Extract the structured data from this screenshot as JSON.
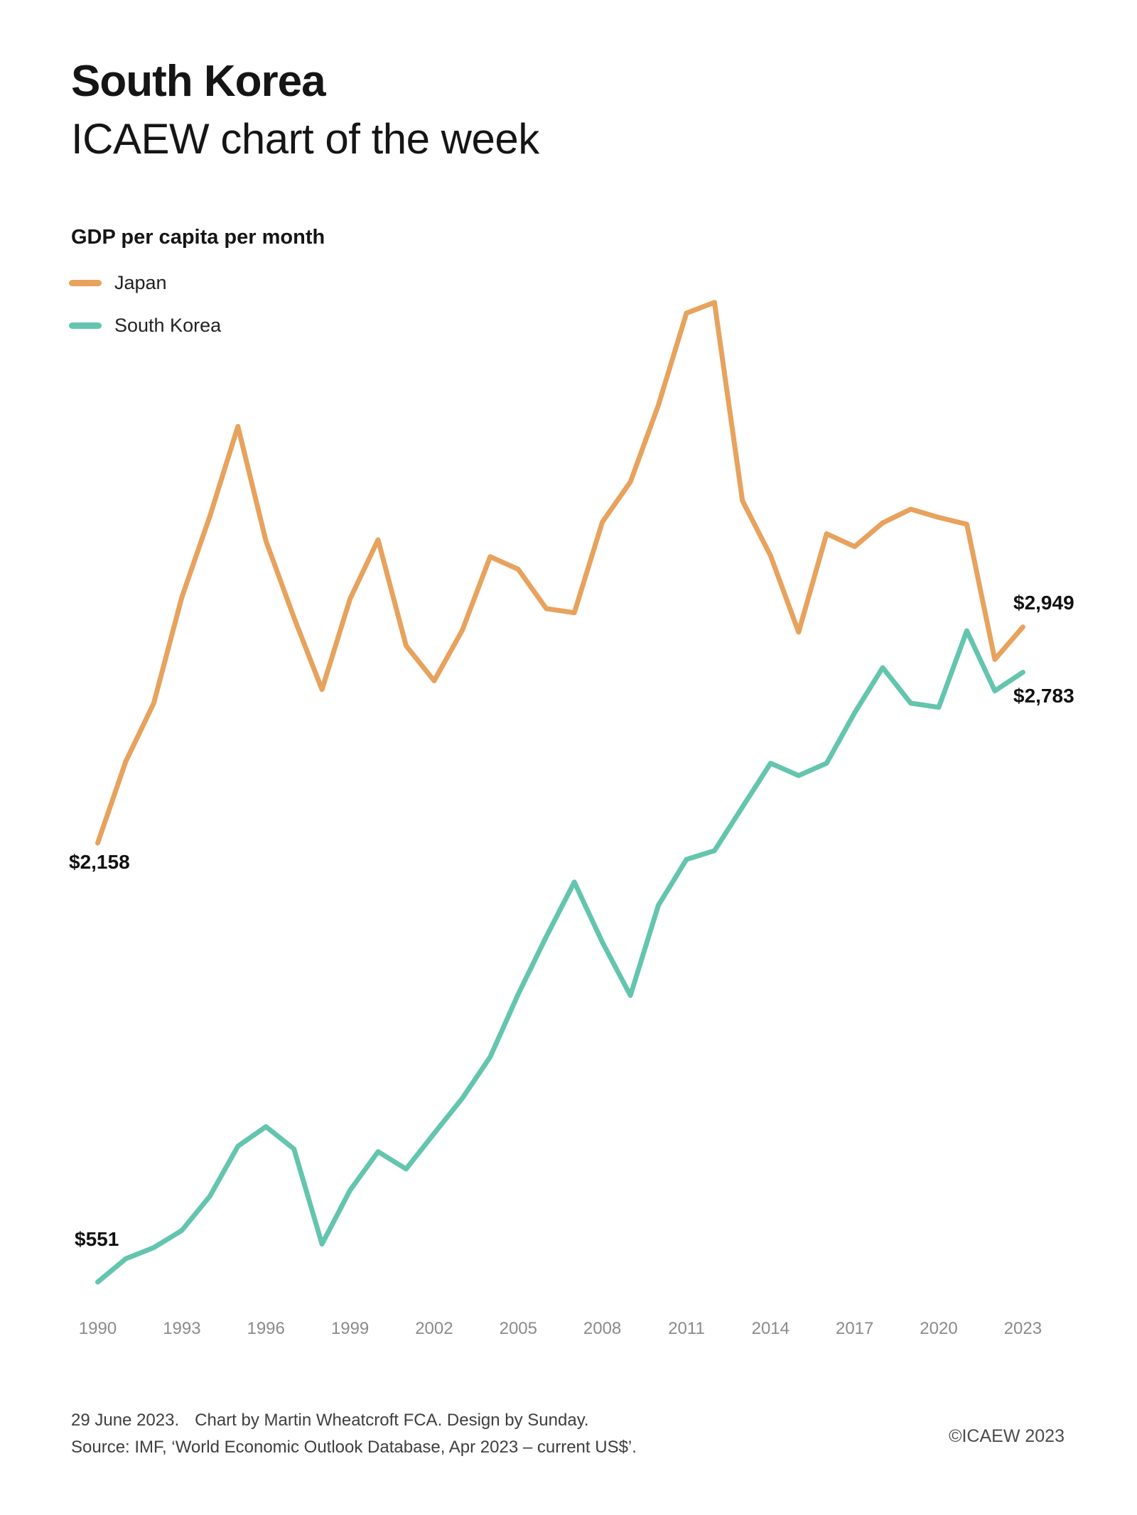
{
  "header": {
    "title": "South Korea",
    "subtitle": "ICAEW chart of the week"
  },
  "legend": {
    "title": "GDP per capita per month",
    "items": [
      {
        "label": "Japan",
        "color": "#E7A25D"
      },
      {
        "label": "South Korea",
        "color": "#64C5AF"
      }
    ]
  },
  "chart_data": {
    "type": "line",
    "title": "GDP per capita per month",
    "x": [
      1990,
      1991,
      1992,
      1993,
      1994,
      1995,
      1996,
      1997,
      1998,
      1999,
      2000,
      2001,
      2002,
      2003,
      2004,
      2005,
      2006,
      2007,
      2008,
      2009,
      2010,
      2011,
      2012,
      2013,
      2014,
      2015,
      2016,
      2017,
      2018,
      2019,
      2020,
      2021,
      2022,
      2023
    ],
    "x_ticks": [
      1990,
      1993,
      1996,
      1999,
      2002,
      2005,
      2008,
      2011,
      2014,
      2017,
      2020,
      2023
    ],
    "series": [
      {
        "name": "Japan",
        "color": "#E7A25D",
        "values": [
          2158,
          2456,
          2670,
          3058,
          3354,
          3683,
          3264,
          2983,
          2720,
          3052,
          3268,
          2880,
          2752,
          2936,
          3206,
          3160,
          3016,
          3001,
          3333,
          3480,
          3761,
          4098,
          4137,
          3411,
          3210,
          2930,
          3290,
          3243,
          3330,
          3380,
          3350,
          3325,
          2830,
          2949
        ]
      },
      {
        "name": "South Korea",
        "color": "#64C5AF",
        "values": [
          551,
          636,
          677,
          740,
          865,
          1048,
          1120,
          1038,
          690,
          887,
          1028,
          965,
          1095,
          1223,
          1375,
          1605,
          1815,
          2015,
          1795,
          1600,
          1930,
          2098,
          2130,
          2290,
          2450,
          2405,
          2450,
          2635,
          2800,
          2670,
          2655,
          2935,
          2715,
          2783
        ]
      }
    ],
    "annotations": [
      {
        "series": "Japan",
        "year": 1990,
        "value": 2158,
        "label": "$2,158"
      },
      {
        "series": "South Korea",
        "year": 1990,
        "value": 551,
        "label": "$551"
      },
      {
        "series": "Japan",
        "year": 2023,
        "value": 2949,
        "label": "$2,949"
      },
      {
        "series": "South Korea",
        "year": 2023,
        "value": 2783,
        "label": "$2,783"
      }
    ],
    "xlim": [
      1990,
      2023
    ],
    "ylim": [
      400,
      4250
    ],
    "grid": false,
    "axis_lines": false,
    "legend_position": "top-left"
  },
  "footer": {
    "date": "29 June 2023.",
    "credit": "Chart by Martin Wheatcroft FCA. Design by Sunday.",
    "source": "Source: IMF, ‘World Economic Outlook Database, Apr 2023 – current US$’.",
    "copyright": "©ICAEW 2023"
  }
}
